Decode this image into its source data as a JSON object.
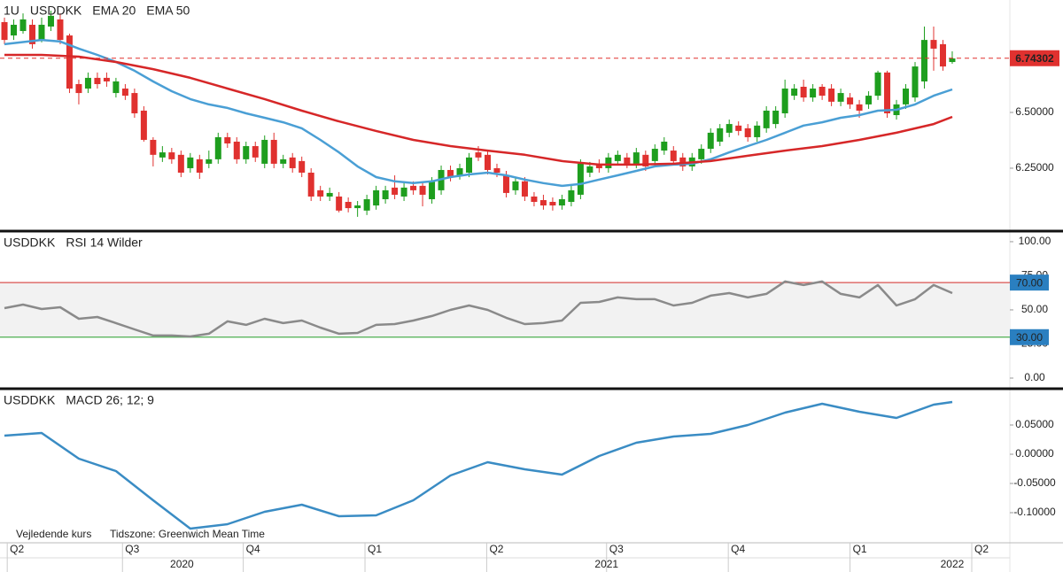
{
  "header": {
    "interval": "1U"
  },
  "x_axis": {
    "xlim": [
      -0.48,
      108.2
    ],
    "xticks": [
      {
        "value": 0.3,
        "label": "Q2"
      },
      {
        "value": 12.7,
        "label": "Q3"
      },
      {
        "value": 25.7,
        "label": "Q4"
      },
      {
        "value": 38.8,
        "label": "Q1"
      },
      {
        "value": 51.9,
        "label": "Q2"
      },
      {
        "value": 64.8,
        "label": "Q3"
      },
      {
        "value": 77.9,
        "label": "Q4"
      },
      {
        "value": 91.0,
        "label": "Q1"
      },
      {
        "value": 104.1,
        "label": "Q2"
      }
    ],
    "year_ticks": [
      {
        "value": 19.1,
        "label": "2020"
      },
      {
        "value": 64.8,
        "label": "2021"
      },
      {
        "value": 102.0,
        "label": "2022"
      }
    ]
  },
  "footer": {
    "source": "Vejledende kurs",
    "timezone": "Tidszone: Greenwich Mean Time"
  },
  "chart_data": [
    {
      "type": "candlestick",
      "title": "USDDKK",
      "up_color": "#1e9e1e",
      "down_color": "#e0312f",
      "ylim": [
        5.972,
        7.004
      ],
      "yticks": [
        {
          "value": 6.25,
          "label": "6.25000"
        },
        {
          "value": 6.5,
          "label": "6.50000"
        }
      ],
      "last_price": 6.74302,
      "last_color": "#e0312f",
      "candles": {
        "open": [
          6.905,
          6.845,
          6.865,
          6.893,
          6.825,
          6.885,
          6.917,
          6.845,
          6.627,
          6.607,
          6.655,
          6.655,
          6.587,
          6.607,
          6.587,
          6.508,
          6.377,
          6.298,
          6.321,
          6.31,
          6.25,
          6.29,
          6.27,
          6.29,
          6.389,
          6.369,
          6.29,
          6.349,
          6.27,
          6.377,
          6.27,
          6.298,
          6.282,
          6.23,
          6.151,
          6.123,
          6.123,
          6.099,
          6.071,
          6.06,
          6.083,
          6.111,
          6.163,
          6.123,
          6.171,
          6.171,
          6.111,
          6.151,
          6.242,
          6.218,
          6.23,
          6.321,
          6.31,
          6.25,
          6.218,
          6.151,
          6.191,
          6.123,
          6.107,
          6.099,
          6.083,
          6.099,
          6.131,
          6.23,
          6.27,
          6.25,
          6.282,
          6.298,
          6.27,
          6.31,
          6.282,
          6.329,
          6.329,
          6.298,
          6.258,
          6.29,
          6.337,
          6.369,
          6.409,
          6.441,
          6.429,
          6.389,
          6.429,
          6.448,
          6.496,
          6.575,
          6.615,
          6.567,
          6.615,
          6.607,
          6.548,
          6.567,
          6.536,
          6.536,
          6.575,
          6.679,
          6.488,
          6.536,
          6.567,
          6.639,
          6.825,
          6.806,
          6.726
        ],
        "high": [
          6.925,
          6.917,
          6.944,
          6.917,
          6.925,
          6.956,
          6.944,
          6.853,
          6.647,
          6.679,
          6.679,
          6.679,
          6.655,
          6.627,
          6.607,
          6.528,
          6.389,
          6.349,
          6.341,
          6.329,
          6.318,
          6.31,
          6.329,
          6.409,
          6.409,
          6.389,
          6.369,
          6.369,
          6.397,
          6.409,
          6.31,
          6.318,
          6.302,
          6.25,
          6.171,
          6.163,
          6.143,
          6.119,
          6.103,
          6.131,
          6.171,
          6.171,
          6.218,
          6.183,
          6.191,
          6.191,
          6.21,
          6.262,
          6.262,
          6.27,
          6.318,
          6.349,
          6.329,
          6.27,
          6.238,
          6.21,
          6.21,
          6.143,
          6.131,
          6.119,
          6.131,
          6.171,
          6.29,
          6.278,
          6.29,
          6.318,
          6.329,
          6.318,
          6.341,
          6.329,
          6.357,
          6.389,
          6.349,
          6.318,
          6.318,
          6.357,
          6.429,
          6.448,
          6.468,
          6.46,
          6.448,
          6.46,
          6.528,
          6.528,
          6.647,
          6.627,
          6.647,
          6.627,
          6.627,
          6.627,
          6.607,
          6.587,
          6.556,
          6.595,
          6.687,
          6.687,
          6.556,
          6.627,
          6.726,
          6.885,
          6.885,
          6.825,
          6.774
        ],
        "low": [
          6.806,
          6.825,
          6.853,
          6.786,
          6.814,
          6.865,
          6.806,
          6.587,
          6.536,
          6.587,
          6.607,
          6.615,
          6.567,
          6.556,
          6.476,
          6.369,
          6.258,
          6.278,
          6.27,
          6.21,
          6.23,
          6.202,
          6.25,
          6.27,
          6.341,
          6.27,
          6.27,
          6.278,
          6.25,
          6.25,
          6.25,
          6.23,
          6.21,
          6.103,
          6.103,
          6.103,
          6.052,
          6.052,
          6.032,
          6.04,
          6.064,
          6.091,
          6.111,
          6.103,
          6.131,
          6.079,
          6.091,
          6.131,
          6.191,
          6.199,
          6.21,
          6.282,
          6.222,
          6.21,
          6.119,
          6.131,
          6.103,
          6.079,
          6.064,
          6.06,
          6.064,
          6.079,
          6.111,
          6.21,
          6.23,
          6.23,
          6.262,
          6.25,
          6.25,
          6.238,
          6.262,
          6.31,
          6.262,
          6.238,
          6.238,
          6.27,
          6.318,
          6.349,
          6.389,
          6.397,
          6.369,
          6.369,
          6.409,
          6.429,
          6.476,
          6.556,
          6.548,
          6.548,
          6.556,
          6.528,
          6.528,
          6.516,
          6.476,
          6.516,
          6.556,
          6.476,
          6.468,
          6.516,
          6.548,
          6.607,
          6.687,
          6.687,
          6.718
        ],
        "close": [
          6.825,
          6.893,
          6.917,
          6.806,
          6.893,
          6.933,
          6.825,
          6.607,
          6.587,
          6.655,
          6.627,
          6.639,
          6.639,
          6.575,
          6.496,
          6.377,
          6.31,
          6.321,
          6.29,
          6.23,
          6.298,
          6.23,
          6.29,
          6.389,
          6.361,
          6.29,
          6.349,
          6.298,
          6.377,
          6.27,
          6.29,
          6.25,
          6.23,
          6.123,
          6.123,
          6.139,
          6.06,
          6.071,
          6.083,
          6.111,
          6.151,
          6.151,
          6.131,
          6.163,
          6.151,
          6.131,
          6.191,
          6.242,
          6.21,
          6.25,
          6.298,
          6.298,
          6.242,
          6.23,
          6.139,
          6.191,
          6.123,
          6.099,
          6.083,
          6.083,
          6.111,
          6.151,
          6.27,
          6.258,
          6.25,
          6.298,
          6.31,
          6.27,
          6.321,
          6.258,
          6.337,
          6.369,
          6.282,
          6.258,
          6.298,
          6.337,
          6.409,
          6.429,
          6.448,
          6.417,
          6.389,
          6.441,
          6.508,
          6.508,
          6.607,
          6.607,
          6.567,
          6.607,
          6.575,
          6.548,
          6.587,
          6.536,
          6.508,
          6.575,
          6.679,
          6.496,
          6.536,
          6.607,
          6.706,
          6.825,
          6.786,
          6.706,
          6.742
        ]
      },
      "series": [
        {
          "name": "EMA 20",
          "color": "#4a9fd5",
          "x": [
            0,
            4,
            6,
            8,
            10,
            12,
            14,
            16,
            18,
            20,
            22,
            24,
            26,
            28,
            30,
            32,
            34,
            36,
            38,
            40,
            42,
            44,
            46,
            48,
            50,
            52,
            54,
            56,
            58,
            60,
            62,
            64,
            66,
            68,
            70,
            72,
            74,
            76,
            78,
            80,
            82,
            84,
            86,
            88,
            90,
            92,
            94,
            96,
            98,
            100,
            102
          ],
          "values": [
            6.806,
            6.825,
            6.818,
            6.786,
            6.758,
            6.726,
            6.687,
            6.639,
            6.595,
            6.56,
            6.536,
            6.52,
            6.496,
            6.476,
            6.456,
            6.429,
            6.377,
            6.321,
            6.258,
            6.21,
            6.191,
            6.183,
            6.191,
            6.21,
            6.222,
            6.23,
            6.218,
            6.199,
            6.183,
            6.171,
            6.179,
            6.199,
            6.218,
            6.238,
            6.258,
            6.266,
            6.27,
            6.29,
            6.321,
            6.349,
            6.377,
            6.409,
            6.441,
            6.456,
            6.476,
            6.488,
            6.508,
            6.512,
            6.536,
            6.575,
            6.603
          ]
        },
        {
          "name": "EMA 50",
          "color": "#d62728",
          "x": [
            0,
            4,
            8,
            12,
            16,
            20,
            24,
            28,
            32,
            36,
            40,
            44,
            48,
            52,
            56,
            60,
            64,
            68,
            72,
            76,
            80,
            84,
            88,
            92,
            96,
            100,
            102
          ],
          "values": [
            6.758,
            6.758,
            6.75,
            6.726,
            6.694,
            6.655,
            6.607,
            6.56,
            6.508,
            6.46,
            6.417,
            6.377,
            6.349,
            6.329,
            6.31,
            6.282,
            6.266,
            6.266,
            6.27,
            6.282,
            6.306,
            6.329,
            6.349,
            6.377,
            6.409,
            6.448,
            6.48
          ]
        }
      ]
    },
    {
      "type": "line",
      "title": "USDDKK",
      "subtitle": "RSI 14 Wilder",
      "ylim": [
        -6.5,
        107.1
      ],
      "yticks": [
        {
          "value": 0,
          "label": "0.00"
        },
        {
          "value": 25,
          "label": "25.00"
        },
        {
          "value": 50,
          "label": "50.00"
        },
        {
          "value": 75,
          "label": "75.00"
        },
        {
          "value": 100,
          "label": "100.00"
        }
      ],
      "band_color": "#f2f2f2",
      "tag_color": "#2a7fc0",
      "levels": [
        {
          "value": 70,
          "label": "70.00",
          "color": "#d9534f"
        },
        {
          "value": 30,
          "label": "30.00",
          "color": "#4caf50"
        }
      ],
      "series": [
        {
          "name": "RSI 14 Wilder",
          "color": "#8a8a8a",
          "x": [
            0,
            2,
            4,
            6,
            8,
            10,
            12,
            14,
            16,
            18,
            20,
            22,
            24,
            26,
            28,
            30,
            32,
            34,
            36,
            38,
            40,
            42,
            44,
            46,
            48,
            50,
            52,
            54,
            56,
            58,
            60,
            62,
            64,
            66,
            68,
            70,
            72,
            74,
            76,
            78,
            80,
            82,
            84,
            86,
            88,
            90,
            92,
            94,
            96,
            98,
            100,
            102
          ],
          "values": [
            51.3,
            53.9,
            50.6,
            51.9,
            43.5,
            44.8,
            40.3,
            35.7,
            31.2,
            31.2,
            30.5,
            32.5,
            41.6,
            39.0,
            43.5,
            40.3,
            42.2,
            37.0,
            32.5,
            33.1,
            39.0,
            39.6,
            42.2,
            45.5,
            50.0,
            53.2,
            50.0,
            44.2,
            39.6,
            40.3,
            42.2,
            55.2,
            55.8,
            59.1,
            57.8,
            57.8,
            53.2,
            55.2,
            60.4,
            62.3,
            59.1,
            61.7,
            70.8,
            68.2,
            70.8,
            61.7,
            59.1,
            68.2,
            53.2,
            57.8,
            68.2,
            62.3
          ]
        }
      ]
    },
    {
      "type": "line",
      "title": "USDDKK",
      "subtitle": "MACD 26; 12; 9",
      "ylim": [
        -0.15,
        0.1106
      ],
      "yticks": [
        {
          "value": 0.05,
          "label": "0.05000"
        },
        {
          "value": 0,
          "label": "0.00000"
        },
        {
          "value": -0.05,
          "label": "-0.05000"
        },
        {
          "value": -0.1,
          "label": "-0.10000"
        }
      ],
      "series": [
        {
          "name": "MACD 26; 12; 9",
          "color": "#3a8cc4",
          "x": [
            0,
            4,
            8,
            12,
            16,
            20,
            24,
            28,
            32,
            36,
            40,
            44,
            48,
            52,
            56,
            60,
            64,
            68,
            72,
            76,
            80,
            84,
            88,
            92,
            96,
            100,
            102
          ],
          "values": [
            0.0318,
            0.0364,
            -0.0076,
            -0.0288,
            -0.0788,
            -0.1273,
            -0.1197,
            -0.0985,
            -0.0864,
            -0.1061,
            -0.1045,
            -0.0788,
            -0.0364,
            -0.0136,
            -0.0258,
            -0.0348,
            -0.003,
            0.0197,
            0.0303,
            0.0348,
            0.05,
            0.0712,
            0.0864,
            0.0727,
            0.0621,
            0.0848,
            0.0894
          ]
        }
      ]
    }
  ]
}
